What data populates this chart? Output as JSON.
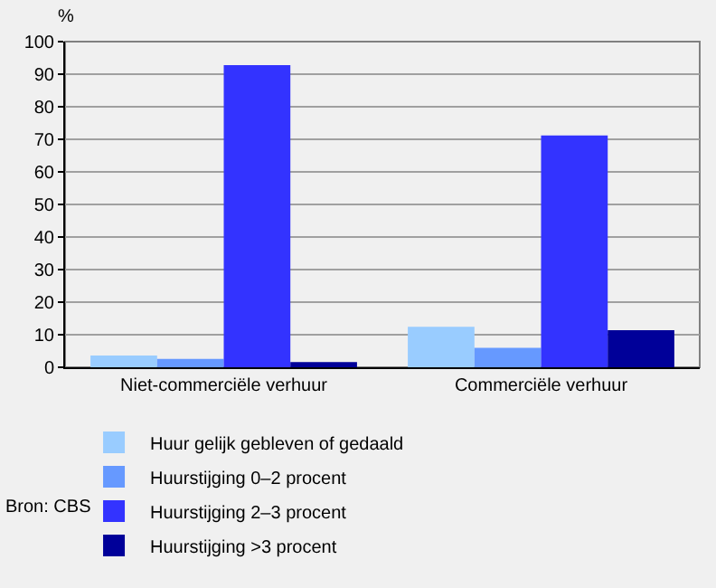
{
  "chart_data": {
    "type": "bar",
    "ylabel": "%",
    "categories": [
      "Niet-commerciële verhuur",
      "Commerciële verhuur"
    ],
    "series": [
      {
        "name": "Huur gelijk gebleven of gedaald",
        "color": "#99ccff",
        "values": [
          3.6,
          12.4
        ]
      },
      {
        "name": "Huurstijging 0–2 procent",
        "color": "#6699ff",
        "values": [
          2.6,
          6.0
        ]
      },
      {
        "name": "Huurstijging 2–3 procent",
        "color": "#3333ff",
        "values": [
          92.8,
          71.2
        ]
      },
      {
        "name": "Huurstijging >3 procent",
        "color": "#000099",
        "values": [
          1.6,
          11.4
        ]
      }
    ],
    "ylim": [
      0,
      100
    ],
    "yticks": [
      0,
      10,
      20,
      30,
      40,
      50,
      60,
      70,
      80,
      90,
      100
    ],
    "grid": "y",
    "legend": "bottom",
    "annotations": [
      "Bron: CBS"
    ]
  }
}
